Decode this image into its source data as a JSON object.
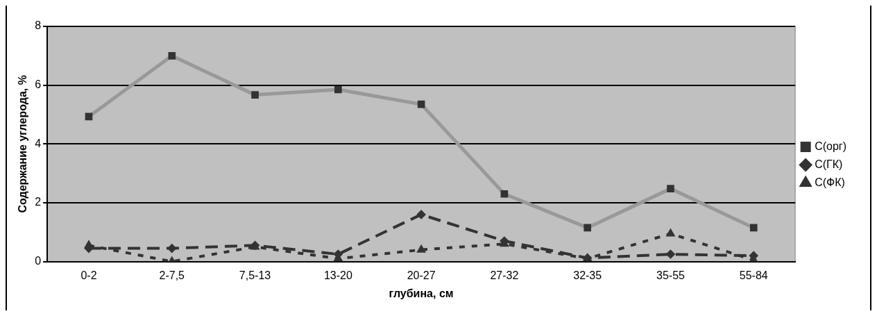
{
  "chart_data": {
    "type": "line",
    "xlabel": "глубина, см",
    "ylabel": "Содержание углерода, %",
    "categories": [
      "0-2",
      "2-7,5",
      "7,5-13",
      "13-20",
      "20-27",
      "27-32",
      "32-35",
      "35-55",
      "55-84"
    ],
    "series": [
      {
        "name": "C(орг)",
        "color": "#999999",
        "marker": "square",
        "line_style": "solid",
        "values": [
          4.93,
          7.0,
          5.67,
          5.85,
          5.35,
          2.3,
          1.15,
          2.48,
          1.15
        ]
      },
      {
        "name": "C(ГК)",
        "color": "#333333",
        "marker": "diamond",
        "line_style": "dashed",
        "values": [
          0.45,
          0.45,
          0.55,
          0.25,
          1.6,
          0.7,
          0.12,
          0.25,
          0.2
        ]
      },
      {
        "name": "C(ФК)",
        "color": "#333333",
        "marker": "triangle",
        "line_style": "dotted",
        "values": [
          0.55,
          0.0,
          0.5,
          0.1,
          0.4,
          0.6,
          0.1,
          0.95,
          0.05
        ]
      }
    ],
    "ylim": [
      0,
      8
    ],
    "yticks": [
      0,
      2,
      4,
      6,
      8
    ],
    "grid": "y",
    "legend": "right"
  }
}
